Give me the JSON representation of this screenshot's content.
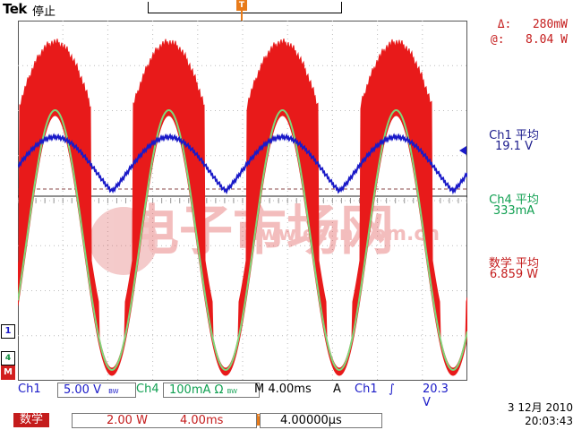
{
  "header": {
    "brand": "Tek",
    "status": "停止",
    "trigger_label": "T"
  },
  "channel_markers": {
    "ch1": "1",
    "ch4": "4",
    "math": "M"
  },
  "cursor": {
    "delta_label": "Δ:",
    "delta_value": "280mW",
    "at_label": "@:",
    "at_value": "8.04 W"
  },
  "measurements": [
    {
      "title": "Ch1 平均",
      "value": "19.1 V"
    },
    {
      "title": "Ch4 平均",
      "value": "333mA"
    },
    {
      "title": "数学 平均",
      "value": "6.859 W"
    }
  ],
  "bottom_row1": {
    "ch1_label": "Ch1",
    "ch1_scale": "5.00 V",
    "ch1_bw": "BW",
    "ch4_label": "Ch4",
    "ch4_scale": "100mA Ω",
    "ch4_bw": "BW",
    "timebase": "M 4.00ms",
    "trig_mode": "A",
    "trig_source": "Ch1",
    "trig_slope": "∫",
    "trig_level": "20.3 V"
  },
  "bottom_row2": {
    "math_label": "数学",
    "math_scale": "2.00 W",
    "math_time": "4.00ms",
    "delay_value": "4.00000µs",
    "date": "3 12月 2010",
    "time": "20:03:43"
  },
  "watermark": {
    "text": "电子市场网",
    "url": "www.eccn.com.cn"
  },
  "colors": {
    "ch1": "#1a1ac8",
    "ch4": "#11a052",
    "math": "#e81a1a",
    "trigger": "#e87b1a",
    "grid": "#7a7a7a"
  }
}
